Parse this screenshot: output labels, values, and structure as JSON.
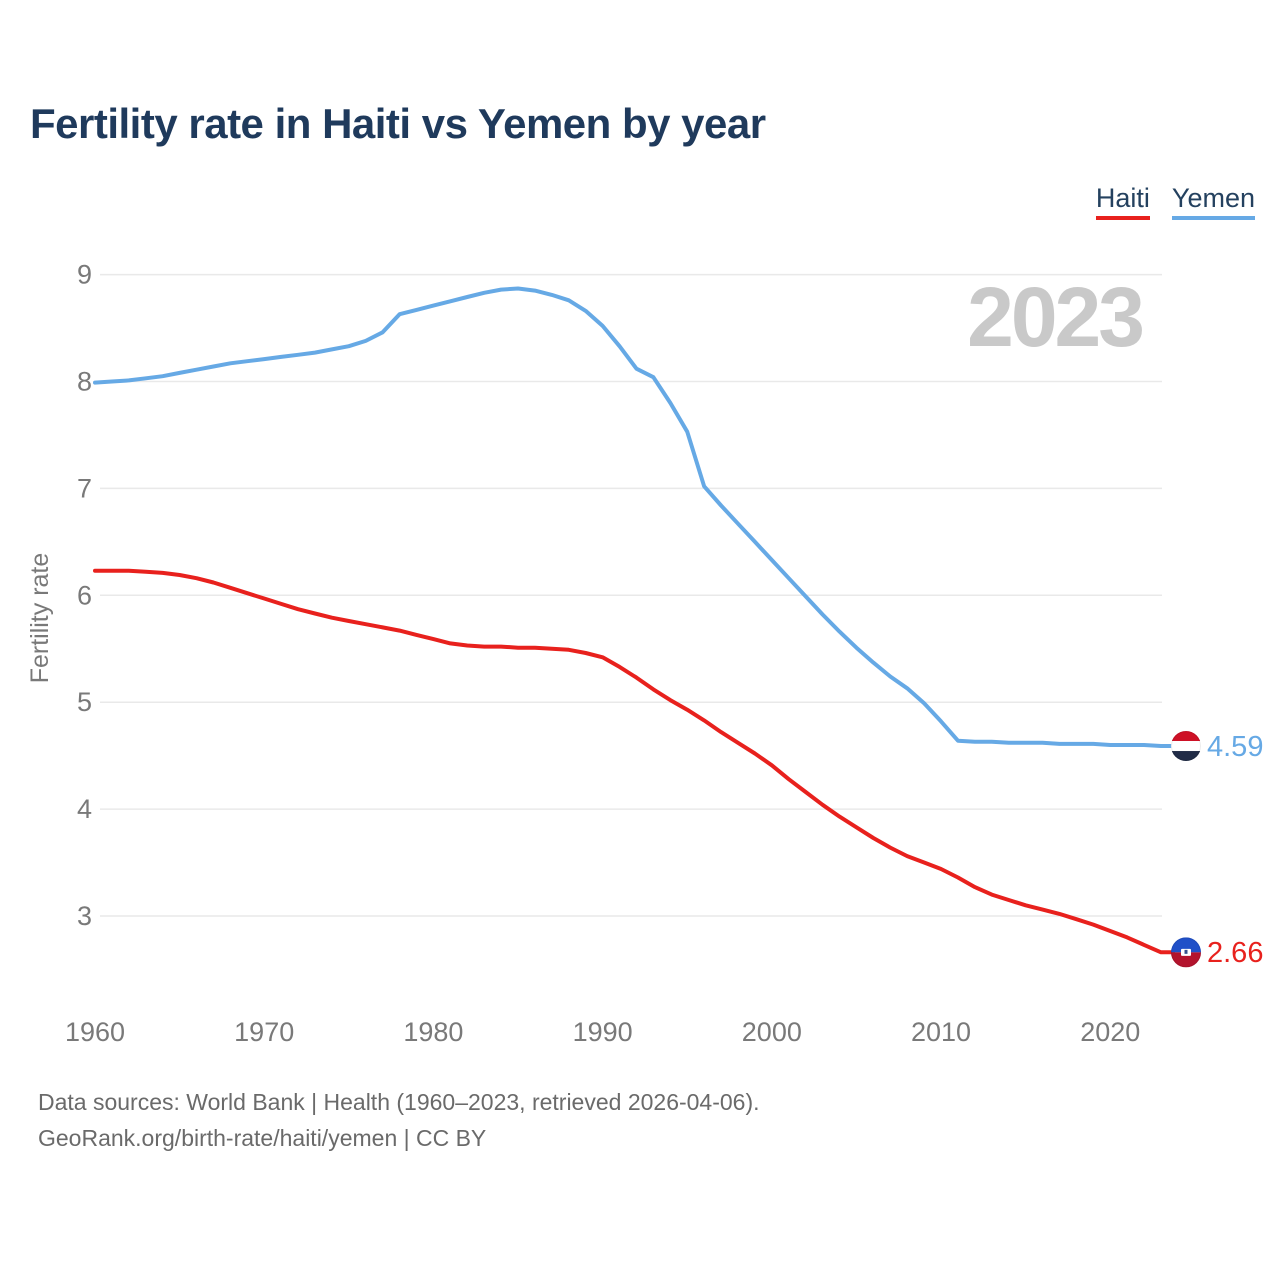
{
  "title": "Fertility rate in Haiti vs Yemen by year",
  "watermark": "2023",
  "legend": [
    {
      "label": "Haiti",
      "color": "#e8211d"
    },
    {
      "label": "Yemen",
      "color": "#66a9e5"
    }
  ],
  "footer": {
    "line1": "Data sources: World Bank | Health (1960–2023, retrieved 2026-04-06).",
    "line2": "GeoRank.org/birth-rate/haiti/yemen | CC BY"
  },
  "chart_data": {
    "type": "line",
    "title": "Fertility rate in Haiti vs Yemen by year",
    "xlabel": "",
    "ylabel": "Fertility rate",
    "grid": "horizontal",
    "legend_position": "top-right",
    "xlim": [
      1960,
      2023
    ],
    "ylim": [
      2.4,
      9.3
    ],
    "x_ticks": [
      1960,
      1970,
      1980,
      1990,
      2000,
      2010,
      2020
    ],
    "y_ticks": [
      9,
      8,
      7,
      6,
      5,
      4,
      3
    ],
    "x": [
      1960,
      1961,
      1962,
      1963,
      1964,
      1965,
      1966,
      1967,
      1968,
      1969,
      1970,
      1971,
      1972,
      1973,
      1974,
      1975,
      1976,
      1977,
      1978,
      1979,
      1980,
      1981,
      1982,
      1983,
      1984,
      1985,
      1986,
      1987,
      1988,
      1989,
      1990,
      1991,
      1992,
      1993,
      1994,
      1995,
      1996,
      1997,
      1998,
      1999,
      2000,
      2001,
      2002,
      2003,
      2004,
      2005,
      2006,
      2007,
      2008,
      2009,
      2010,
      2011,
      2012,
      2013,
      2014,
      2015,
      2016,
      2017,
      2018,
      2019,
      2020,
      2021,
      2022,
      2023
    ],
    "series": [
      {
        "name": "Haiti",
        "color": "#e8211d",
        "end_value": 2.66,
        "end_label": "2.66",
        "flag": "haiti",
        "values": [
          6.23,
          6.23,
          6.23,
          6.22,
          6.21,
          6.19,
          6.16,
          6.12,
          6.07,
          6.02,
          5.97,
          5.92,
          5.87,
          5.83,
          5.79,
          5.76,
          5.73,
          5.7,
          5.67,
          5.63,
          5.59,
          5.55,
          5.53,
          5.52,
          5.52,
          5.51,
          5.51,
          5.5,
          5.49,
          5.46,
          5.42,
          5.33,
          5.23,
          5.12,
          5.02,
          4.93,
          4.83,
          4.72,
          4.62,
          4.52,
          4.41,
          4.28,
          4.16,
          4.04,
          3.93,
          3.83,
          3.73,
          3.64,
          3.56,
          3.5,
          3.44,
          3.36,
          3.27,
          3.2,
          3.15,
          3.1,
          3.06,
          3.02,
          2.97,
          2.92,
          2.86,
          2.8,
          2.73,
          2.66
        ]
      },
      {
        "name": "Yemen",
        "color": "#66a9e5",
        "end_value": 4.59,
        "end_label": "4.59",
        "flag": "yemen",
        "values": [
          7.99,
          8.0,
          8.01,
          8.03,
          8.05,
          8.08,
          8.11,
          8.14,
          8.17,
          8.19,
          8.21,
          8.23,
          8.25,
          8.27,
          8.3,
          8.33,
          8.38,
          8.46,
          8.63,
          8.67,
          8.71,
          8.75,
          8.79,
          8.83,
          8.86,
          8.87,
          8.85,
          8.81,
          8.76,
          8.66,
          8.52,
          8.33,
          8.12,
          8.04,
          7.8,
          7.53,
          7.02,
          6.84,
          6.67,
          6.5,
          6.33,
          6.16,
          5.99,
          5.82,
          5.66,
          5.51,
          5.37,
          5.24,
          5.13,
          4.99,
          4.82,
          4.64,
          4.63,
          4.63,
          4.62,
          4.62,
          4.62,
          4.61,
          4.61,
          4.61,
          4.6,
          4.6,
          4.6,
          4.59
        ]
      }
    ],
    "flag_colors": {
      "haiti_blue": "#2050c8",
      "haiti_red": "#b3132d",
      "yemen_red": "#ce1126",
      "yemen_white": "#ffffff",
      "yemen_black": "#212c47"
    }
  }
}
